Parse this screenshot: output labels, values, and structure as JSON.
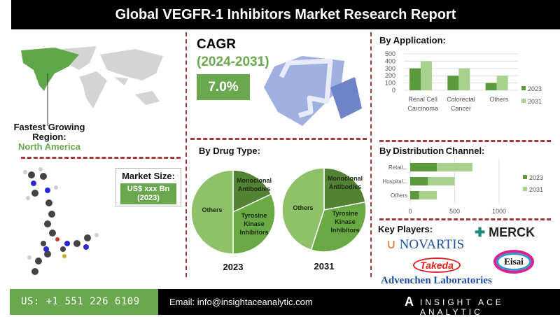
{
  "title": "Global VEGFR-1 Inhibitors Market Research Report",
  "region": {
    "label": "Fastest Growing Region:",
    "line1": "Fastest Growing",
    "line2": "Region:",
    "value": "North America"
  },
  "market_size": {
    "label": "Market Size:",
    "value": "US$ xxx Bn",
    "year": "(2023)"
  },
  "cagr": {
    "label": "CAGR",
    "period": "(2024-2031)",
    "value": "7.0%"
  },
  "colors": {
    "dark_green": "#5b9a3c",
    "light_green": "#a9d18e",
    "accent_red": "#a33a3a",
    "brand_green": "#6aa84f"
  },
  "key_players": {
    "label": "Key Players:",
    "companies": [
      "NOVARTIS",
      "MERCK",
      "Takeda",
      "Eisai",
      "Advenchen Laboratories"
    ]
  },
  "footer": {
    "phone": "US: +1 551 226 6109",
    "email": "Email: info@insightaceanalytic.com",
    "brand": "INSIGHT ACE ANALYTIC"
  },
  "chart_data": [
    {
      "type": "bar",
      "title": "By Application:",
      "categories": [
        "Renal Cell Carcinoma",
        "Colorectal Cancer",
        "Others"
      ],
      "category_lines": [
        [
          "Renal Cell",
          "Carcinoma"
        ],
        [
          "Colorectal",
          "Cancer"
        ],
        [
          "Others"
        ]
      ],
      "series": [
        {
          "name": "2023",
          "values": [
            300,
            200,
            100
          ]
        },
        {
          "name": "2031",
          "values": [
            400,
            300,
            200
          ]
        }
      ],
      "ylim": [
        0,
        500
      ],
      "yticks": [
        "0",
        "100",
        "200",
        "300",
        "400",
        "500"
      ],
      "legend": "right",
      "grid": true
    },
    {
      "type": "bar",
      "orientation": "horizontal",
      "stacked": true,
      "title": "By  Distribution Channel:",
      "categories": [
        "Retail...",
        "Hospital...",
        "Others"
      ],
      "series": [
        {
          "name": "2023",
          "values": [
            300,
            200,
            100
          ]
        },
        {
          "name": "2031",
          "values": [
            400,
            300,
            200
          ]
        }
      ],
      "xlim": [
        0,
        1000
      ],
      "xticks": [
        "0",
        "500",
        "1000"
      ],
      "legend": "right",
      "grid": true
    },
    {
      "type": "pie",
      "title": "By Drug Type:",
      "subtitle": "2023",
      "labels": [
        "Monoclonal Antibodies",
        "Tyrosine Kinase Inhibitors",
        "Others"
      ],
      "values": [
        18,
        32,
        50
      ]
    },
    {
      "type": "pie",
      "title": "By Drug Type:",
      "subtitle": "2031",
      "labels": [
        "Monoclonal Antibodies",
        "Tyrosine Kinase Inhibitors",
        "Others"
      ],
      "values": [
        22,
        33,
        45
      ]
    }
  ]
}
